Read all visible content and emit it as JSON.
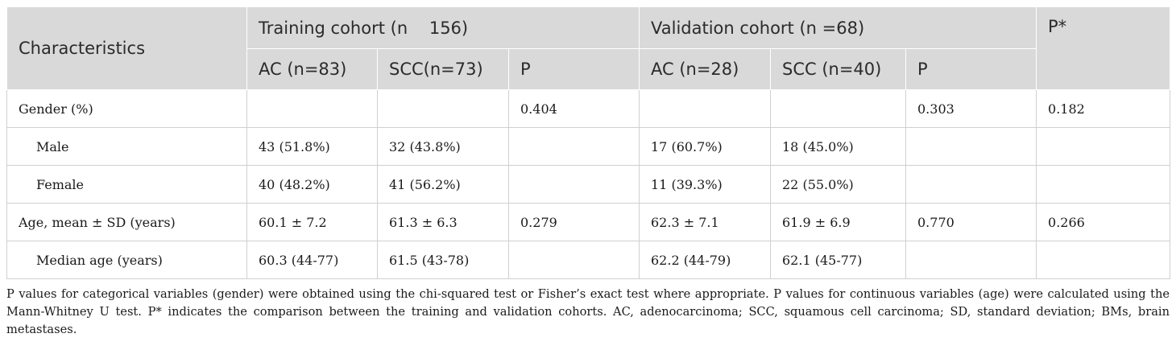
{
  "table": {
    "header": {
      "characteristics": "Characteristics",
      "training_cohort": "Training cohort (n    156)",
      "validation_cohort": "Validation cohort (n =68)",
      "p_star": "P*",
      "sub": [
        "AC (n=83)",
        "SCC(n=73)",
        "P",
        "AC (n=28)",
        "SCC (n=40)",
        "P"
      ]
    },
    "rows": [
      {
        "label": "Gender (%)",
        "cells": [
          "",
          "",
          "0.404",
          "",
          "",
          "0.303",
          "0.182"
        ]
      },
      {
        "label": "Male",
        "cells": [
          "43 (51.8%)",
          "32 (43.8%)",
          "",
          "17 (60.7%)",
          "18 (45.0%)",
          "",
          ""
        ]
      },
      {
        "label": "Female",
        "cells": [
          "40 (48.2%)",
          "41 (56.2%)",
          "",
          "11 (39.3%)",
          "22 (55.0%)",
          "",
          ""
        ]
      },
      {
        "label": "Age, mean ± SD (years)",
        "cells": [
          "60.1 ± 7.2",
          "61.3 ± 6.3",
          "0.279",
          "62.3 ± 7.1",
          "61.9 ± 6.9",
          "0.770",
          "0.266"
        ]
      },
      {
        "label": "Median age (years)",
        "cells": [
          "60.3 (44-77)",
          "61.5 (43-78)",
          "",
          "62.2 (44-79)",
          "62.1 (45-77)",
          "",
          ""
        ]
      }
    ]
  },
  "footnote": "P values for categorical variables (gender) were obtained using the chi-squared test or Fisher’s exact test where appropriate. P values for continuous variables (age) were calculated using the Mann-Whitney U test. P* indicates the comparison between the training and validation cohorts. AC, adenocarcinoma; SCC, squamous cell carcinoma; SD, standard deviation; BMs, brain metastases."
}
